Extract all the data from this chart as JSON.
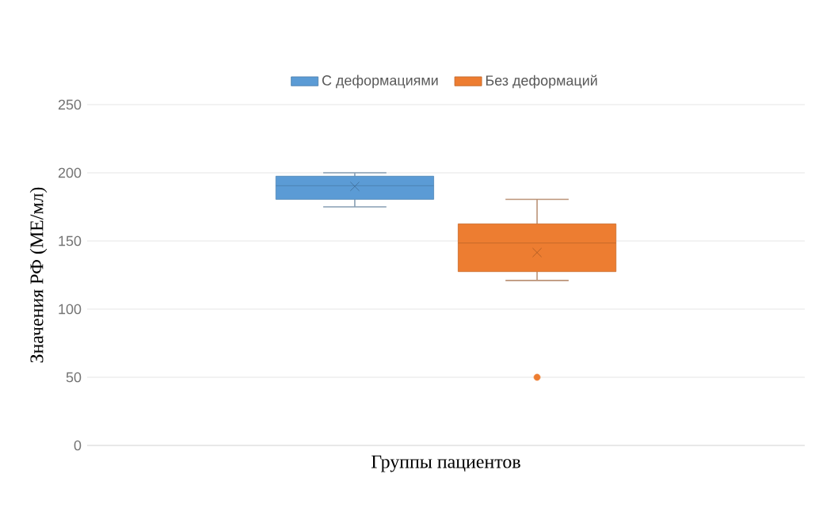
{
  "chart_data": {
    "type": "box",
    "xlabel": "Группы пациентов",
    "ylabel": "Значения  РФ (МЕ/мл)",
    "categories": [
      null
    ],
    "series": [
      {
        "name": "С деформациями",
        "color": "#5b9bd5",
        "boxes": [
          {
            "low": 175,
            "q1": 180.5,
            "median": 190.5,
            "q3": 197.5,
            "high": 200,
            "mean": 190
          }
        ]
      },
      {
        "name": "Без деформаций",
        "color": "#ed7d31",
        "boxes": [
          {
            "low": 121,
            "q1": 127.5,
            "median": 148.5,
            "q3": 162.5,
            "high": 180.5,
            "mean": 141.5,
            "outliers": [
              50
            ]
          }
        ]
      }
    ],
    "ylim": [
      0,
      250
    ],
    "yticks": [
      0,
      50,
      100,
      150,
      200,
      250
    ],
    "grid": "y",
    "legend": "top"
  }
}
